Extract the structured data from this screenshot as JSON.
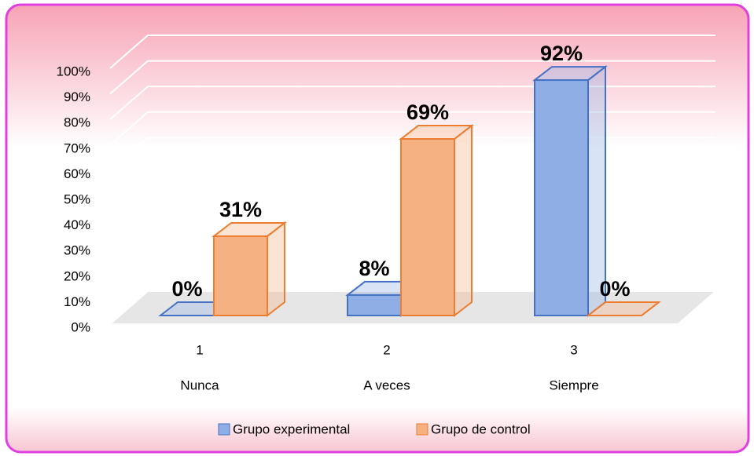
{
  "chart_data": {
    "type": "bar3d",
    "categories": [
      "1",
      "2",
      "3"
    ],
    "category_labels": [
      "Nunca",
      "A veces",
      "Siempre"
    ],
    "series": [
      {
        "name": "Grupo experimental",
        "color": "#4472c4",
        "fill": "#8faee6",
        "values": [
          0,
          8,
          92
        ],
        "value_labels": [
          "0%",
          "8%",
          "92%"
        ]
      },
      {
        "name": "Grupo de control",
        "color": "#ed7d31",
        "fill": "#f6b183",
        "values": [
          31,
          69,
          0
        ],
        "value_labels": [
          "31%",
          "69%",
          "0%"
        ]
      }
    ],
    "ylim": [
      0,
      100
    ],
    "yticks": [
      {
        "value": 0,
        "label": "0%"
      },
      {
        "value": 10,
        "label": "10%"
      },
      {
        "value": 20,
        "label": "20%"
      },
      {
        "value": 30,
        "label": "30%"
      },
      {
        "value": 40,
        "label": "40%"
      },
      {
        "value": 50,
        "label": "50%"
      },
      {
        "value": 60,
        "label": "60%"
      },
      {
        "value": 70,
        "label": "70%"
      },
      {
        "value": 80,
        "label": "80%"
      },
      {
        "value": 90,
        "label": "90%"
      },
      {
        "value": 100,
        "label": "100%"
      }
    ],
    "grid": true,
    "legend": "bottom"
  }
}
